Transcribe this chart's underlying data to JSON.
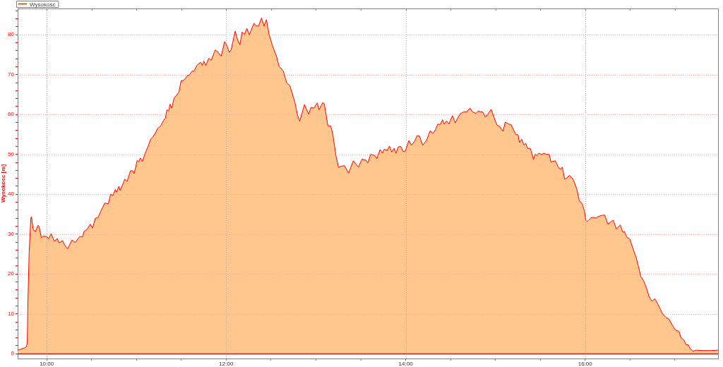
{
  "chart_data": {
    "type": "area",
    "ylabel": "Wysokosc [m]",
    "x": [
      9.678,
      9.757,
      9.775,
      9.783,
      9.791,
      9.804,
      9.823,
      9.83,
      9.849,
      9.874,
      9.901,
      9.914,
      9.94,
      9.961,
      10.006,
      10.019,
      10.05,
      10.084,
      10.118,
      10.137,
      10.176,
      10.202,
      10.233,
      10.28,
      10.32,
      10.346,
      10.367,
      10.398,
      10.416,
      10.451,
      10.485,
      10.51,
      10.542,
      10.569,
      10.608,
      10.647,
      10.686,
      10.712,
      10.738,
      10.765,
      10.777,
      10.804,
      10.817,
      10.856,
      10.869,
      10.895,
      10.934,
      10.956,
      10.974,
      11.008,
      11.026,
      11.044,
      11.066,
      11.092,
      11.131,
      11.157,
      11.183,
      11.209,
      11.236,
      11.275,
      11.301,
      11.322,
      11.34,
      11.359,
      11.374,
      11.393,
      11.419,
      11.445,
      11.472,
      11.498,
      11.516,
      11.537,
      11.563,
      11.589,
      11.621,
      11.641,
      11.673,
      11.715,
      11.733,
      11.751,
      11.772,
      11.806,
      11.833,
      11.877,
      11.903,
      11.943,
      11.982,
      12.008,
      12.034,
      12.055,
      12.1,
      12.126,
      12.152,
      12.178,
      12.204,
      12.23,
      12.257,
      12.309,
      12.335,
      12.361,
      12.393,
      12.422,
      12.448,
      12.479,
      12.518,
      12.558,
      12.589,
      12.636,
      12.675,
      12.709,
      12.767,
      12.793,
      12.819,
      12.872,
      12.919,
      12.945,
      12.976,
      13.015,
      13.034,
      13.076,
      13.094,
      13.133,
      13.165,
      13.186,
      13.225,
      13.251,
      13.278,
      13.317,
      13.364,
      13.416,
      13.474,
      13.513,
      13.553,
      13.578,
      13.61,
      13.657,
      13.678,
      13.714,
      13.741,
      13.761,
      13.793,
      13.819,
      13.845,
      13.871,
      13.892,
      13.918,
      13.945,
      13.971,
      13.997,
      14.036,
      14.063,
      14.097,
      14.128,
      14.154,
      14.189,
      14.232,
      14.272,
      14.306,
      14.332,
      14.358,
      14.385,
      14.411,
      14.429,
      14.456,
      14.481,
      14.521,
      14.552,
      14.586,
      14.613,
      14.652,
      14.678,
      14.717,
      14.743,
      14.782,
      14.809,
      14.835,
      14.861,
      14.887,
      14.913,
      14.953,
      14.992,
      15.018,
      15.044,
      15.084,
      15.11,
      15.149,
      15.175,
      15.201,
      15.227,
      15.253,
      15.267,
      15.293,
      15.319,
      15.337,
      15.359,
      15.39,
      15.424,
      15.442,
      15.463,
      15.484,
      15.516,
      15.541,
      15.567,
      15.599,
      15.62,
      15.667,
      15.699,
      15.724,
      15.746,
      15.771,
      15.79,
      15.824,
      15.856,
      15.877,
      15.908,
      15.934,
      15.966,
      15.991,
      16.007,
      16.026,
      16.065,
      16.097,
      16.117,
      16.144,
      16.183,
      16.217,
      16.254,
      16.287,
      16.313,
      16.348,
      16.392,
      16.419,
      16.437,
      16.463,
      16.497,
      16.536,
      16.568,
      16.594,
      16.62,
      16.654,
      16.688,
      16.714,
      16.745,
      16.777,
      16.811,
      16.837,
      16.863,
      16.902,
      16.934,
      16.968,
      17.008,
      17.047,
      17.065,
      17.099,
      17.125,
      17.151,
      17.173,
      17.204,
      17.23,
      17.322,
      17.4,
      17.479
    ],
    "series": [
      {
        "name": "Wysokosc",
        "color": "#ffc68e",
        "values": [
          0.9,
          1.5,
          1.8,
          2.9,
          13.5,
          25.3,
          34.1,
          34.4,
          31.2,
          30.6,
          32.2,
          32.0,
          29.1,
          29.5,
          29.3,
          28.8,
          30.1,
          28.2,
          28.9,
          27.8,
          28.4,
          27.2,
          26.3,
          28.5,
          27.9,
          28.8,
          29.4,
          29.3,
          30.7,
          31.2,
          32.5,
          31.5,
          34.0,
          34.1,
          36.0,
          37.8,
          37.6,
          40.0,
          39.7,
          41.2,
          40.5,
          42.0,
          41.0,
          42.9,
          43.8,
          43.2,
          45.9,
          45.9,
          45.2,
          48.5,
          48.2,
          49.1,
          48.2,
          50.0,
          52.1,
          53.8,
          54.4,
          55.3,
          56.5,
          57.3,
          58.5,
          59.1,
          61.2,
          60.9,
          62.6,
          61.6,
          64.1,
          64.8,
          65.6,
          68.5,
          68.5,
          68.8,
          69.7,
          69.9,
          70.9,
          70.9,
          72.3,
          73.1,
          72.3,
          73.4,
          72.3,
          74.1,
          73.6,
          76.2,
          75.8,
          74.6,
          78.3,
          77.3,
          75.6,
          76.3,
          80.9,
          78.8,
          77.5,
          80.7,
          80.1,
          81.6,
          80.0,
          82.9,
          82.2,
          82.2,
          84.2,
          82.2,
          83.8,
          80.0,
          77.1,
          74.8,
          72.1,
          70.9,
          67.9,
          67.3,
          62.9,
          60.0,
          58.3,
          62.5,
          60.1,
          61.8,
          61.6,
          62.9,
          61.2,
          63.0,
          62.6,
          57.2,
          57.1,
          55.3,
          49.4,
          46.8,
          47.0,
          47.2,
          45.3,
          48.4,
          46.8,
          48.8,
          48.6,
          47.9,
          50.0,
          49.7,
          48.9,
          51.2,
          50.3,
          51.3,
          51.0,
          52.1,
          50.6,
          51.5,
          50.3,
          51.9,
          52.0,
          50.7,
          50.9,
          53.5,
          52.3,
          53.2,
          54.7,
          54.6,
          52.3,
          53.5,
          55.9,
          55.3,
          56.2,
          57.6,
          57.5,
          58.7,
          57.6,
          58.4,
          57.6,
          59.7,
          57.9,
          59.4,
          60.3,
          60.7,
          60.7,
          61.6,
          60.7,
          60.3,
          60.9,
          60.7,
          60.6,
          59.4,
          60.0,
          61.3,
          58.8,
          57.3,
          57.1,
          55.8,
          58.1,
          57.6,
          57.5,
          56.2,
          55.0,
          54.9,
          53.0,
          53.8,
          52.3,
          52.8,
          51.5,
          51.5,
          48.7,
          50.0,
          49.7,
          50.3,
          50.0,
          50.3,
          50.0,
          50.0,
          48.1,
          48.4,
          46.9,
          46.2,
          46.8,
          43.8,
          44.0,
          44.7,
          44.1,
          43.2,
          41.2,
          38.5,
          37.6,
          35.9,
          33.6,
          33.2,
          34.1,
          34.2,
          34.0,
          34.4,
          34.7,
          34.8,
          32.5,
          33.1,
          33.5,
          31.3,
          32.3,
          30.5,
          30.7,
          29.3,
          28.8,
          26.2,
          24.2,
          21.9,
          19.4,
          18.2,
          16.2,
          14.2,
          13.2,
          13.8,
          12.4,
          11.2,
          10.0,
          9.1,
          8.7,
          7.3,
          5.9,
          5.6,
          4.1,
          3.5,
          2.3,
          2.2,
          1.2,
          0.6,
          0.9,
          0.8,
          0.8,
          0.9
        ]
      }
    ],
    "xlim": [
      9.676,
      17.481
    ],
    "ylim": [
      -1.2,
      86.6
    ],
    "xticks": [
      {
        "value": 10,
        "label": "10:00"
      },
      {
        "value": 10.5,
        "label": null
      },
      {
        "value": 11,
        "label": null
      },
      {
        "value": 11.5,
        "label": null
      },
      {
        "value": 12,
        "label": "12:00"
      },
      {
        "value": 12.5,
        "label": null
      },
      {
        "value": 13,
        "label": null
      },
      {
        "value": 13.5,
        "label": null
      },
      {
        "value": 14,
        "label": "14:00"
      },
      {
        "value": 14.5,
        "label": null
      },
      {
        "value": 15,
        "label": null
      },
      {
        "value": 15.5,
        "label": null
      },
      {
        "value": 16,
        "label": "16:00"
      },
      {
        "value": 16.5,
        "label": null
      },
      {
        "value": 17,
        "label": null
      }
    ],
    "yticks": [
      0,
      {
        "value": 2,
        "label": null
      },
      {
        "value": 4,
        "label": null
      },
      {
        "value": 6,
        "label": null
      },
      {
        "value": 8,
        "label": null
      },
      10,
      {
        "value": 12,
        "label": null
      },
      {
        "value": 14,
        "label": null
      },
      {
        "value": 16,
        "label": null
      },
      {
        "value": 18,
        "label": null
      },
      20,
      {
        "value": 22,
        "label": null
      },
      {
        "value": 24,
        "label": null
      },
      {
        "value": 26,
        "label": null
      },
      {
        "value": 28,
        "label": null
      },
      30,
      {
        "value": 32,
        "label": null
      },
      {
        "value": 34,
        "label": null
      },
      {
        "value": 36,
        "label": null
      },
      {
        "value": 38,
        "label": null
      },
      40,
      {
        "value": 42,
        "label": null
      },
      {
        "value": 44,
        "label": null
      },
      {
        "value": 46,
        "label": null
      },
      {
        "value": 48,
        "label": null
      },
      50,
      {
        "value": 52,
        "label": null
      },
      {
        "value": 54,
        "label": null
      },
      {
        "value": 56,
        "label": null
      },
      {
        "value": 58,
        "label": null
      },
      60,
      {
        "value": 62,
        "label": null
      },
      {
        "value": 64,
        "label": null
      },
      {
        "value": 66,
        "label": null
      },
      {
        "value": 68,
        "label": null
      },
      70,
      {
        "value": 72,
        "label": null
      },
      {
        "value": 74,
        "label": null
      },
      {
        "value": 76,
        "label": null
      },
      {
        "value": 78,
        "label": null
      },
      80,
      {
        "value": 82,
        "label": null
      },
      {
        "value": 84,
        "label": null
      },
      {
        "value": 86,
        "label": null
      }
    ],
    "grid": true,
    "legend": "top left"
  }
}
